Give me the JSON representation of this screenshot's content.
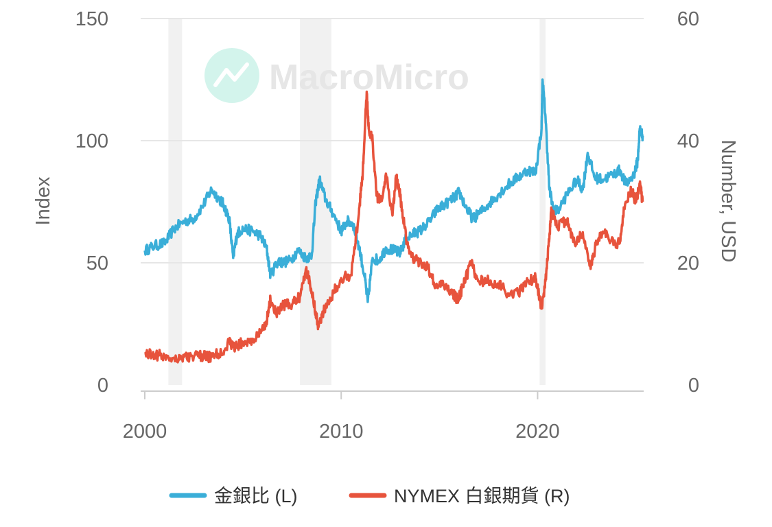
{
  "chart_data": {
    "type": "line",
    "title": "",
    "xlim": [
      2000,
      2025.4
    ],
    "x_ticks": [
      2000,
      2010,
      2020
    ],
    "left_axis": {
      "label": "Index",
      "range": [
        0,
        150
      ],
      "ticks": [
        0,
        50,
        100,
        150
      ]
    },
    "right_axis": {
      "label": "Number, USD",
      "range": [
        0,
        60
      ],
      "ticks": [
        0,
        20,
        40,
        60
      ]
    },
    "grid": true,
    "legend_position": "bottom-center",
    "shaded_periods": [
      [
        2001.2,
        2001.9
      ],
      [
        2007.9,
        2009.5
      ],
      [
        2020.1,
        2020.4
      ]
    ],
    "watermark": "MacroMicro",
    "series": [
      {
        "name": "金銀比 (L)",
        "axis": "left",
        "color": "#3aaed8",
        "points": [
          [
            2000.0,
            55
          ],
          [
            2000.5,
            57
          ],
          [
            2001.0,
            58
          ],
          [
            2001.5,
            64
          ],
          [
            2002.0,
            67
          ],
          [
            2002.5,
            68
          ],
          [
            2003.0,
            74
          ],
          [
            2003.4,
            80
          ],
          [
            2003.8,
            76
          ],
          [
            2004.0,
            74
          ],
          [
            2004.3,
            68
          ],
          [
            2004.5,
            52
          ],
          [
            2004.7,
            62
          ],
          [
            2005.0,
            64
          ],
          [
            2005.5,
            63
          ],
          [
            2005.9,
            61
          ],
          [
            2006.2,
            56
          ],
          [
            2006.4,
            45
          ],
          [
            2006.8,
            51
          ],
          [
            2007.0,
            50
          ],
          [
            2007.4,
            51
          ],
          [
            2007.8,
            55
          ],
          [
            2008.2,
            52
          ],
          [
            2008.5,
            53
          ],
          [
            2008.7,
            75
          ],
          [
            2008.9,
            84
          ],
          [
            2009.2,
            76
          ],
          [
            2009.6,
            70
          ],
          [
            2010.0,
            63
          ],
          [
            2010.3,
            67
          ],
          [
            2010.6,
            66
          ],
          [
            2010.9,
            57
          ],
          [
            2011.2,
            44
          ],
          [
            2011.35,
            34
          ],
          [
            2011.6,
            52
          ],
          [
            2011.9,
            51
          ],
          [
            2012.3,
            56
          ],
          [
            2012.7,
            55
          ],
          [
            2013.0,
            54
          ],
          [
            2013.3,
            60
          ],
          [
            2013.7,
            62
          ],
          [
            2014.0,
            63
          ],
          [
            2014.5,
            67
          ],
          [
            2014.9,
            72
          ],
          [
            2015.3,
            74
          ],
          [
            2015.8,
            77
          ],
          [
            2016.0,
            79
          ],
          [
            2016.4,
            72
          ],
          [
            2016.7,
            68
          ],
          [
            2017.0,
            70
          ],
          [
            2017.5,
            74
          ],
          [
            2018.0,
            78
          ],
          [
            2018.5,
            82
          ],
          [
            2019.0,
            85
          ],
          [
            2019.5,
            88
          ],
          [
            2019.9,
            87
          ],
          [
            2020.2,
            105
          ],
          [
            2020.25,
            125
          ],
          [
            2020.4,
            110
          ],
          [
            2020.6,
            80
          ],
          [
            2020.8,
            72
          ],
          [
            2021.0,
            71
          ],
          [
            2021.5,
            78
          ],
          [
            2022.0,
            84
          ],
          [
            2022.3,
            80
          ],
          [
            2022.55,
            95
          ],
          [
            2022.9,
            85
          ],
          [
            2023.3,
            84
          ],
          [
            2023.8,
            86
          ],
          [
            2024.2,
            88
          ],
          [
            2024.5,
            82
          ],
          [
            2024.9,
            86
          ],
          [
            2025.1,
            92
          ],
          [
            2025.2,
            105
          ],
          [
            2025.35,
            102
          ]
        ]
      },
      {
        "name": "NYMEX 白銀期貨 (R)",
        "axis": "right",
        "color": "#e7533c",
        "points": [
          [
            2000.0,
            5.2
          ],
          [
            2000.5,
            5.0
          ],
          [
            2001.0,
            4.7
          ],
          [
            2001.5,
            4.4
          ],
          [
            2002.0,
            4.6
          ],
          [
            2002.5,
            4.7
          ],
          [
            2003.0,
            4.7
          ],
          [
            2003.4,
            4.6
          ],
          [
            2003.9,
            5.3
          ],
          [
            2004.3,
            7.0
          ],
          [
            2004.6,
            6.2
          ],
          [
            2005.0,
            7.0
          ],
          [
            2005.5,
            7.2
          ],
          [
            2005.9,
            8.5
          ],
          [
            2006.2,
            10.5
          ],
          [
            2006.4,
            14.0
          ],
          [
            2006.7,
            11.5
          ],
          [
            2007.0,
            13.0
          ],
          [
            2007.5,
            13.2
          ],
          [
            2007.9,
            14.5
          ],
          [
            2008.2,
            19.0
          ],
          [
            2008.4,
            17.0
          ],
          [
            2008.7,
            12.0
          ],
          [
            2008.85,
            9.5
          ],
          [
            2009.2,
            13.0
          ],
          [
            2009.6,
            15.0
          ],
          [
            2010.0,
            17.5
          ],
          [
            2010.5,
            18.0
          ],
          [
            2010.9,
            28.0
          ],
          [
            2011.1,
            35.0
          ],
          [
            2011.3,
            48.0
          ],
          [
            2011.4,
            42.0
          ],
          [
            2011.6,
            40.0
          ],
          [
            2011.8,
            31.0
          ],
          [
            2012.0,
            30.0
          ],
          [
            2012.3,
            34.0
          ],
          [
            2012.6,
            28.0
          ],
          [
            2012.8,
            34.0
          ],
          [
            2013.0,
            31.0
          ],
          [
            2013.3,
            24.0
          ],
          [
            2013.6,
            21.0
          ],
          [
            2014.0,
            20.0
          ],
          [
            2014.4,
            19.5
          ],
          [
            2014.8,
            16.0
          ],
          [
            2015.2,
            16.5
          ],
          [
            2015.7,
            15.0
          ],
          [
            2015.9,
            14.0
          ],
          [
            2016.2,
            16.0
          ],
          [
            2016.6,
            20.0
          ],
          [
            2017.0,
            17.0
          ],
          [
            2017.5,
            17.0
          ],
          [
            2018.0,
            16.5
          ],
          [
            2018.5,
            15.0
          ],
          [
            2019.0,
            15.0
          ],
          [
            2019.5,
            17.0
          ],
          [
            2019.9,
            17.5
          ],
          [
            2020.2,
            12.5
          ],
          [
            2020.4,
            17.0
          ],
          [
            2020.6,
            24.0
          ],
          [
            2020.7,
            28.5
          ],
          [
            2021.0,
            26.0
          ],
          [
            2021.5,
            27.0
          ],
          [
            2021.9,
            23.0
          ],
          [
            2022.3,
            25.0
          ],
          [
            2022.7,
            19.0
          ],
          [
            2023.0,
            23.5
          ],
          [
            2023.4,
            25.0
          ],
          [
            2023.9,
            23.0
          ],
          [
            2024.2,
            23.5
          ],
          [
            2024.4,
            29.0
          ],
          [
            2024.8,
            32.0
          ],
          [
            2025.0,
            30.0
          ],
          [
            2025.2,
            33.0
          ],
          [
            2025.35,
            30.0
          ]
        ]
      }
    ]
  }
}
